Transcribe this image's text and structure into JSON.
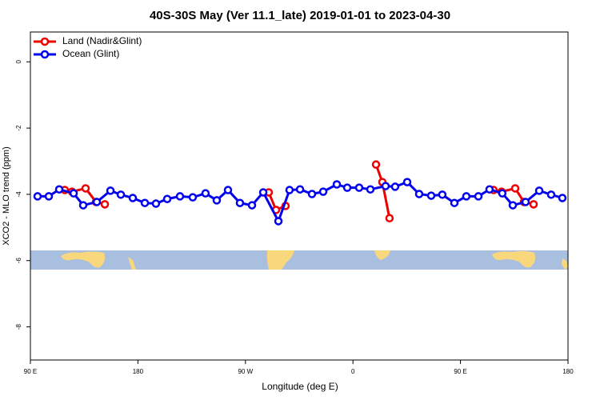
{
  "chart_data": {
    "type": "line",
    "title": "40S-30S May (Ver 11.1_late)   2019-01-01 to 2023-04-30",
    "xlabel": "Longitude (deg E)",
    "ylabel": "XCO2 - MLO trend (ppm)",
    "xlim": [
      90,
      540
    ],
    "ylim": [
      -9.0,
      0.9
    ],
    "xticks": [
      {
        "value": 90,
        "label": "90 E"
      },
      180,
      {
        "value": 270,
        "label": "90 W"
      },
      {
        "value": 360,
        "label": "0"
      },
      {
        "value": 450,
        "label": "90 E"
      },
      {
        "value": 540,
        "label": "180"
      }
    ],
    "yticks": [
      0,
      -2,
      -4,
      -6,
      -8
    ],
    "legend": "topleft",
    "series": [
      {
        "name": "Land (Nadir&Glint)",
        "color": "#ee0000",
        "x": [
          118.8,
          124.8,
          136.2,
          144.9,
          152.3,
          null,
          289.5,
          295.6,
          303.6,
          null,
          379.3,
          384.6,
          390.6,
          null,
          477.7,
          484.4,
          495.8,
          503.1,
          511.2
        ],
        "values": [
          -3.87,
          -3.92,
          -3.82,
          -4.23,
          -4.3,
          null,
          -3.94,
          -4.47,
          -4.35,
          null,
          -3.1,
          -3.63,
          -4.72,
          null,
          -3.87,
          -3.92,
          -3.82,
          -4.23,
          -4.3
        ]
      },
      {
        "name": "Ocean (Glint)",
        "color": "#0000ee",
        "x": [
          96,
          105.4,
          114.1,
          126.2,
          134.2,
          145.6,
          157,
          165.7,
          175.7,
          185.8,
          195.1,
          204.5,
          215.2,
          225.9,
          236.6,
          246,
          255.4,
          265.4,
          275.5,
          284.9,
          297.6,
          306.9,
          315.7,
          325.7,
          335.1,
          346.5,
          355.2,
          365.2,
          374.6,
          387.3,
          395.3,
          405.4,
          415.4,
          425.5,
          434.8,
          444.9,
          454.9,
          465,
          474.3,
          485,
          493.8,
          504.5,
          515.9,
          525.9,
          535.3
        ],
        "values": [
          -4.06,
          -4.06,
          -3.85,
          -3.97,
          -4.33,
          -4.23,
          -3.89,
          -4.01,
          -4.11,
          -4.26,
          -4.28,
          -4.14,
          -4.06,
          -4.09,
          -3.97,
          -4.18,
          -3.87,
          -4.26,
          -4.33,
          -3.94,
          -4.81,
          -3.87,
          -3.85,
          -3.99,
          -3.92,
          -3.7,
          -3.8,
          -3.8,
          -3.85,
          -3.75,
          -3.77,
          -3.63,
          -3.99,
          -4.04,
          -4.01,
          -4.26,
          -4.06,
          -4.06,
          -3.85,
          -3.97,
          -4.33,
          -4.23,
          -3.89,
          -4.01,
          -4.11
        ]
      }
    ]
  }
}
